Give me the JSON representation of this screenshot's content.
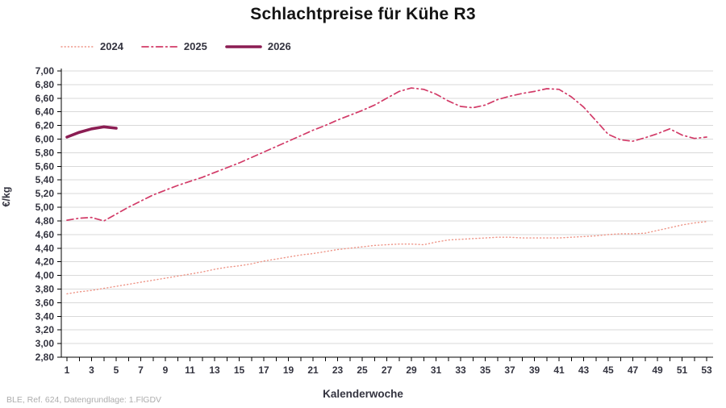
{
  "title": "Schlachtpreise für Kühe R3",
  "footer": "BLE, Ref. 624, Datengrundlage: 1.FlGDV",
  "colors": {
    "series_2024": "#EE9486",
    "series_2025": "#D23B68",
    "series_2026": "#8B1D53",
    "grid": "#D9D9D9",
    "axis": "#000000",
    "tick_text": "#33333F",
    "title_text": "#141414",
    "footer_text": "#ADADAD"
  },
  "chart_data": {
    "type": "line",
    "title": "Schlachtpreise für Kühe R3",
    "xlabel": "Kalenderwoche",
    "ylabel": "€/kg",
    "ylim": [
      2.8,
      7.0
    ],
    "ytick_step": 0.2,
    "ytick_labels": [
      "7,00",
      "6,80",
      "6,60",
      "6,40",
      "6,20",
      "6,00",
      "5,80",
      "5,60",
      "5,40",
      "5,20",
      "5,00",
      "4,80",
      "4,60",
      "4,40",
      "4,20",
      "4,00",
      "3,80",
      "3,60",
      "3,40",
      "3,20",
      "3,00",
      "2,80"
    ],
    "x_range": [
      1,
      53
    ],
    "xtick_labels": [
      1,
      3,
      5,
      7,
      9,
      11,
      13,
      15,
      17,
      19,
      21,
      23,
      25,
      27,
      29,
      31,
      33,
      35,
      37,
      39,
      41,
      43,
      45,
      47,
      49,
      51,
      53
    ],
    "grid": "horizontal",
    "legend_position": "top-left",
    "series": [
      {
        "name": "2024",
        "style": "dotted",
        "color": "#EE9486",
        "start_week": 1,
        "values": [
          3.73,
          3.76,
          3.78,
          3.81,
          3.84,
          3.87,
          3.9,
          3.93,
          3.96,
          3.99,
          4.02,
          4.05,
          4.09,
          4.12,
          4.14,
          4.17,
          4.21,
          4.24,
          4.27,
          4.3,
          4.32,
          4.35,
          4.38,
          4.4,
          4.42,
          4.44,
          4.45,
          4.46,
          4.46,
          4.45,
          4.49,
          4.52,
          4.53,
          4.54,
          4.55,
          4.56,
          4.56,
          4.55,
          4.55,
          4.55,
          4.55,
          4.56,
          4.57,
          4.58,
          4.6,
          4.61,
          4.61,
          4.62,
          4.66,
          4.7,
          4.74,
          4.77,
          4.79
        ]
      },
      {
        "name": "2025",
        "style": "dash-dot",
        "color": "#D23B68",
        "start_week": 1,
        "values": [
          4.81,
          4.84,
          4.85,
          4.8,
          4.9,
          5.0,
          5.09,
          5.18,
          5.25,
          5.32,
          5.38,
          5.44,
          5.51,
          5.58,
          5.65,
          5.73,
          5.81,
          5.89,
          5.97,
          6.05,
          6.13,
          6.2,
          6.28,
          6.35,
          6.42,
          6.5,
          6.6,
          6.7,
          6.75,
          6.73,
          6.66,
          6.56,
          6.48,
          6.46,
          6.5,
          6.58,
          6.63,
          6.67,
          6.7,
          6.74,
          6.73,
          6.62,
          6.47,
          6.27,
          6.07,
          5.99,
          5.97,
          6.02,
          6.08,
          6.15,
          6.06,
          6.01,
          6.03
        ]
      },
      {
        "name": "2026",
        "style": "solid-thick",
        "color": "#8B1D53",
        "start_week": 1,
        "values": [
          6.03,
          6.1,
          6.15,
          6.18,
          6.16
        ]
      }
    ]
  }
}
